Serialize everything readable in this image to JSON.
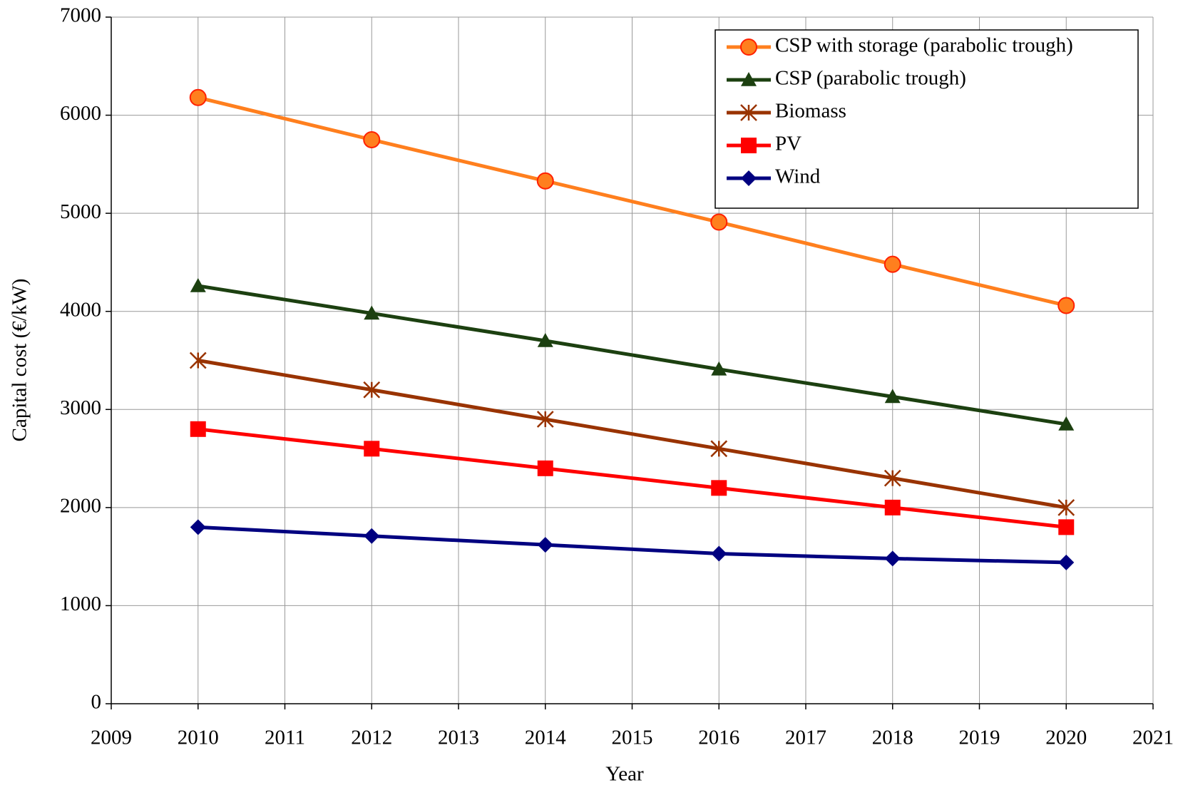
{
  "chart_data": {
    "type": "line",
    "x_label": "Year",
    "y_label": "Capital cost (€/kW)",
    "x": [
      2010,
      2012,
      2014,
      2016,
      2018,
      2020
    ],
    "series": [
      {
        "name": "CSP with storage (parabolic trough)",
        "color": "#ff7f1e",
        "marker": "circle",
        "values": [
          6180,
          5750,
          5330,
          4910,
          4480,
          4060
        ]
      },
      {
        "name": "CSP (parabolic trough)",
        "color": "#1c4010",
        "marker": "triangle",
        "values": [
          4260,
          3980,
          3700,
          3410,
          3130,
          2850
        ]
      },
      {
        "name": "Biomass",
        "color": "#993300",
        "marker": "asterisk",
        "values": [
          3500,
          3200,
          2900,
          2600,
          2300,
          2000
        ]
      },
      {
        "name": "PV",
        "color": "#ff0000",
        "marker": "square",
        "values": [
          2800,
          2600,
          2400,
          2200,
          2000,
          1800
        ]
      },
      {
        "name": "Wind",
        "color": "#000080",
        "marker": "diamond",
        "values": [
          1800,
          1710,
          1620,
          1530,
          1480,
          1440
        ]
      }
    ],
    "xlim": [
      2009,
      2021
    ],
    "xticks": [
      2009,
      2010,
      2011,
      2012,
      2013,
      2014,
      2015,
      2016,
      2017,
      2018,
      2019,
      2020,
      2021
    ],
    "ylim": [
      0,
      7000
    ],
    "yticks": [
      0,
      1000,
      2000,
      3000,
      4000,
      5000,
      6000,
      7000
    ],
    "grid": true,
    "legend": "upper right"
  }
}
